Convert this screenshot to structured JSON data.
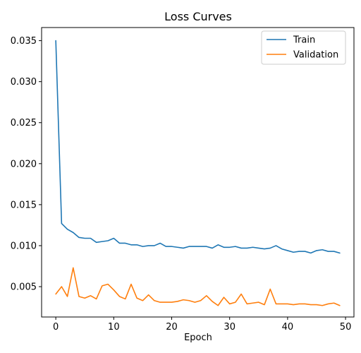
{
  "chart_data": {
    "type": "line",
    "title": "Loss Curves",
    "xlabel": "Epoch",
    "ylabel": "",
    "xlim": [
      -2.45,
      51.45
    ],
    "ylim": [
      0.0013,
      0.0366
    ],
    "xticks": [
      0,
      10,
      20,
      30,
      40,
      50
    ],
    "yticks": [
      0.005,
      0.01,
      0.015,
      0.02,
      0.025,
      0.03,
      0.035
    ],
    "ytick_labels": [
      "0.005",
      "0.010",
      "0.015",
      "0.020",
      "0.025",
      "0.030",
      "0.035"
    ],
    "legend_position": "top-right",
    "x": [
      0,
      1,
      2,
      3,
      4,
      5,
      6,
      7,
      8,
      9,
      10,
      11,
      12,
      13,
      14,
      15,
      16,
      17,
      18,
      19,
      20,
      21,
      22,
      23,
      24,
      25,
      26,
      27,
      28,
      29,
      30,
      31,
      32,
      33,
      34,
      35,
      36,
      37,
      38,
      39,
      40,
      41,
      42,
      43,
      44,
      45,
      46,
      47,
      48,
      49
    ],
    "series": [
      {
        "name": "Train",
        "color": "#1f77b4",
        "values": [
          0.035,
          0.0127,
          0.012,
          0.0116,
          0.011,
          0.0109,
          0.0109,
          0.0104,
          0.0105,
          0.0106,
          0.0109,
          0.0103,
          0.0103,
          0.0101,
          0.0101,
          0.0099,
          0.01,
          0.01,
          0.0103,
          0.0099,
          0.0099,
          0.0098,
          0.0097,
          0.0099,
          0.0099,
          0.0099,
          0.0099,
          0.0097,
          0.0101,
          0.0098,
          0.0098,
          0.0099,
          0.0097,
          0.0097,
          0.0098,
          0.0097,
          0.0096,
          0.0097,
          0.01,
          0.0096,
          0.0094,
          0.0092,
          0.0093,
          0.0093,
          0.0091,
          0.0094,
          0.0095,
          0.0093,
          0.0093,
          0.0091
        ]
      },
      {
        "name": "Validation",
        "color": "#ff7f0e",
        "values": [
          0.0041,
          0.005,
          0.0038,
          0.0073,
          0.0038,
          0.0036,
          0.0039,
          0.0035,
          0.0051,
          0.0053,
          0.0046,
          0.0038,
          0.0035,
          0.0053,
          0.0036,
          0.0033,
          0.004,
          0.0033,
          0.0031,
          0.0031,
          0.0031,
          0.0032,
          0.0034,
          0.0033,
          0.0031,
          0.0033,
          0.0039,
          0.0032,
          0.0027,
          0.0037,
          0.0029,
          0.0031,
          0.0041,
          0.0029,
          0.003,
          0.0031,
          0.0028,
          0.0047,
          0.0029,
          0.0029,
          0.0029,
          0.0028,
          0.0029,
          0.0029,
          0.0028,
          0.0028,
          0.0027,
          0.0029,
          0.003,
          0.0027
        ]
      }
    ]
  }
}
